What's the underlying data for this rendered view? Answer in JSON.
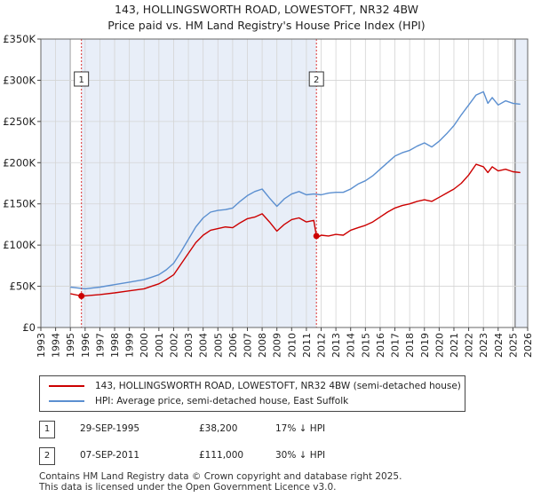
{
  "chart_data": {
    "type": "line",
    "title": "143, HOLLINGSWORTH ROAD, LOWESTOFT, NR32 4BW",
    "subtitle": "Price paid vs. HM Land Registry's House Price Index (HPI)",
    "xlim": [
      1993,
      2026
    ],
    "ylim": [
      0,
      350000
    ],
    "x_ticks": [
      1993,
      1994,
      1995,
      1996,
      1997,
      1998,
      1999,
      2000,
      2001,
      2002,
      2003,
      2004,
      2005,
      2006,
      2007,
      2008,
      2009,
      2010,
      2011,
      2012,
      2013,
      2014,
      2015,
      2016,
      2017,
      2018,
      2019,
      2020,
      2021,
      2022,
      2023,
      2024,
      2025,
      2026
    ],
    "y_ticks": [
      0,
      50000,
      100000,
      150000,
      200000,
      250000,
      300000,
      350000
    ],
    "y_tick_labels": [
      "£0",
      "£50K",
      "£100K",
      "£150K",
      "£200K",
      "£250K",
      "£300K",
      "£350K"
    ],
    "shaded_ranges": [
      [
        1993,
        1995.0
      ],
      [
        1995.75,
        2011.68
      ],
      [
        2025.15,
        2026
      ]
    ],
    "grid": true,
    "series": [
      {
        "name": "143, HOLLINGSWORTH ROAD, LOWESTOFT, NR32 4BW (semi-detached house)",
        "color": "#cc0000",
        "x": [
          1995.0,
          1995.75,
          1996.0,
          1997.0,
          1998.0,
          1999.0,
          2000.0,
          2000.5,
          2001.0,
          2001.5,
          2002.0,
          2002.5,
          2003.0,
          2003.5,
          2004.0,
          2004.5,
          2005.0,
          2005.5,
          2006.0,
          2006.5,
          2007.0,
          2007.5,
          2008.0,
          2008.5,
          2009.0,
          2009.5,
          2010.0,
          2010.5,
          2011.0,
          2011.5,
          2011.68,
          2011.75,
          2012.0,
          2012.5,
          2013.0,
          2013.5,
          2014.0,
          2014.5,
          2015.0,
          2015.5,
          2016.0,
          2016.5,
          2017.0,
          2017.5,
          2018.0,
          2018.5,
          2019.0,
          2019.5,
          2020.0,
          2020.5,
          2021.0,
          2021.5,
          2022.0,
          2022.5,
          2023.0,
          2023.3,
          2023.6,
          2024.0,
          2024.5,
          2025.0,
          2025.5
        ],
        "values": [
          41000,
          38200,
          38500,
          40000,
          42000,
          44500,
          47000,
          50000,
          53000,
          58000,
          64000,
          77000,
          90000,
          103000,
          112000,
          118000,
          120000,
          122000,
          121000,
          127000,
          132000,
          134000,
          138000,
          128000,
          117000,
          125000,
          131000,
          133000,
          128000,
          130000,
          111000,
          109000,
          112000,
          111000,
          113000,
          112000,
          118000,
          121000,
          124000,
          128000,
          134000,
          140000,
          145000,
          148000,
          150000,
          153000,
          155000,
          153000,
          158000,
          163000,
          168000,
          175000,
          185000,
          198000,
          195000,
          188000,
          195000,
          190000,
          192000,
          189000,
          188000
        ]
      },
      {
        "name": "HPI: Average price, semi-detached house, East Suffolk",
        "color": "#5b8fd0",
        "x": [
          1995.0,
          1996.0,
          1997.0,
          1998.0,
          1999.0,
          2000.0,
          2000.5,
          2001.0,
          2001.5,
          2002.0,
          2002.5,
          2003.0,
          2003.5,
          2004.0,
          2004.5,
          2005.0,
          2005.5,
          2006.0,
          2006.5,
          2007.0,
          2007.5,
          2008.0,
          2008.5,
          2009.0,
          2009.5,
          2010.0,
          2010.5,
          2011.0,
          2011.5,
          2012.0,
          2012.5,
          2013.0,
          2013.5,
          2014.0,
          2014.5,
          2015.0,
          2015.5,
          2016.0,
          2016.5,
          2017.0,
          2017.5,
          2018.0,
          2018.5,
          2019.0,
          2019.5,
          2020.0,
          2020.5,
          2021.0,
          2021.5,
          2022.0,
          2022.5,
          2023.0,
          2023.3,
          2023.6,
          2024.0,
          2024.5,
          2025.0,
          2025.5
        ],
        "values": [
          49000,
          47000,
          49000,
          52000,
          55000,
          58000,
          61000,
          64000,
          70000,
          78000,
          92000,
          107000,
          122000,
          133000,
          140000,
          142000,
          143000,
          145000,
          153000,
          160000,
          165000,
          168000,
          157000,
          147000,
          156000,
          162000,
          165000,
          161000,
          162000,
          161000,
          163000,
          164000,
          164000,
          168000,
          174000,
          178000,
          184000,
          192000,
          200000,
          208000,
          212000,
          215000,
          220000,
          224000,
          219000,
          226000,
          235000,
          245000,
          258000,
          270000,
          282000,
          286000,
          272000,
          279000,
          270000,
          275000,
          272000,
          271000
        ]
      }
    ],
    "annotations": [
      {
        "label": "1",
        "x": 1995.75,
        "value": 38200
      },
      {
        "label": "2",
        "x": 2011.68,
        "value": 111000
      }
    ]
  },
  "legend": [
    {
      "label": "143, HOLLINGSWORTH ROAD, LOWESTOFT, NR32 4BW (semi-detached house)",
      "color": "#cc0000"
    },
    {
      "label": "HPI: Average price, semi-detached house, East Suffolk",
      "color": "#5b8fd0"
    }
  ],
  "sales": [
    {
      "num": "1",
      "date": "29-SEP-1995",
      "price": "£38,200",
      "hpi": "17% ↓ HPI"
    },
    {
      "num": "2",
      "date": "07-SEP-2011",
      "price": "£111,000",
      "hpi": "30% ↓ HPI"
    }
  ],
  "footer": {
    "line1": "Contains HM Land Registry data © Crown copyright and database right 2025.",
    "line2": "This data is licensed under the Open Government Licence v3.0."
  }
}
